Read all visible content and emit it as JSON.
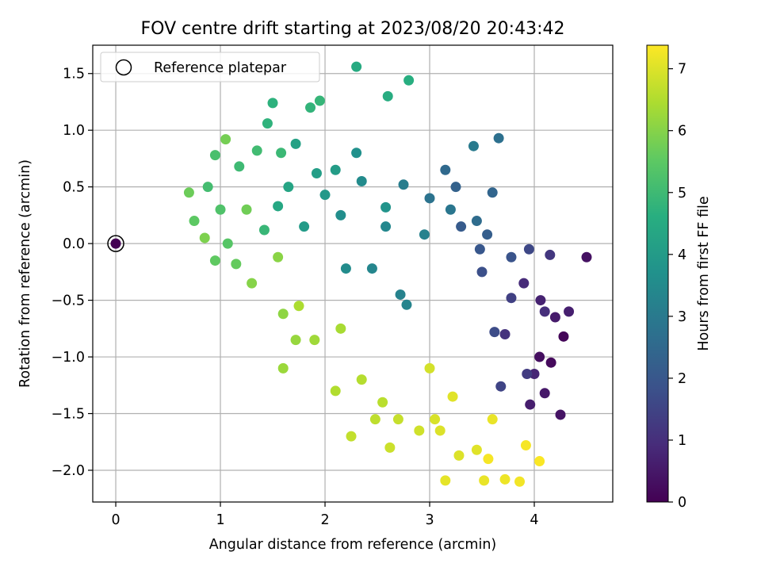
{
  "chart_data": {
    "type": "scatter",
    "title": "FOV centre drift starting at 2023/08/20 20:43:42",
    "xlabel": "Angular distance from reference (arcmin)",
    "ylabel": "Rotation from reference (arcmin)",
    "xlim": [
      -0.22,
      4.75
    ],
    "ylim": [
      -2.28,
      1.75
    ],
    "x_ticks": [
      0,
      1,
      2,
      3,
      4
    ],
    "y_ticks": [
      -2.0,
      -1.5,
      -1.0,
      -0.5,
      0.0,
      0.5,
      1.0,
      1.5
    ],
    "x_tick_labels": [
      "0",
      "1",
      "2",
      "3",
      "4"
    ],
    "y_tick_labels": [
      "−2.0",
      "−1.5",
      "−1.0",
      "−0.5",
      "0.0",
      "0.5",
      "1.0",
      "1.5"
    ],
    "grid": true,
    "legend": {
      "position": "upper-left",
      "entries": [
        "Reference platepar"
      ]
    },
    "reference_point": {
      "x": 0,
      "y": 0
    },
    "colorbar": {
      "label": "Hours from first FF file",
      "colormap": "viridis",
      "range": [
        0,
        7.38
      ],
      "ticks": [
        0,
        1,
        2,
        3,
        4,
        5,
        6,
        7
      ],
      "tick_labels": [
        "0",
        "1",
        "2",
        "3",
        "4",
        "5",
        "6",
        "7"
      ]
    },
    "series": [
      {
        "color_value": "hours",
        "points": [
          [
            4.28,
            -0.82,
            0.1
          ],
          [
            4.16,
            -1.05,
            0.2
          ],
          [
            4.05,
            -1.0,
            0.3
          ],
          [
            4.5,
            -0.12,
            0.35
          ],
          [
            4.25,
            -1.51,
            0.4
          ],
          [
            4.1,
            -1.32,
            0.5
          ],
          [
            4.2,
            -0.65,
            0.55
          ],
          [
            3.96,
            -1.42,
            0.6
          ],
          [
            4.33,
            -0.6,
            0.65
          ],
          [
            4.06,
            -0.5,
            0.7
          ],
          [
            4.0,
            -1.15,
            0.8
          ],
          [
            3.9,
            -0.35,
            0.9
          ],
          [
            4.1,
            -0.6,
            1.0
          ],
          [
            3.72,
            -0.8,
            1.1
          ],
          [
            4.15,
            -0.1,
            1.2
          ],
          [
            3.93,
            -1.15,
            1.3
          ],
          [
            3.78,
            -0.48,
            1.4
          ],
          [
            3.68,
            -1.26,
            1.5
          ],
          [
            3.95,
            -0.05,
            1.6
          ],
          [
            3.62,
            -0.78,
            1.7
          ],
          [
            3.5,
            -0.25,
            1.8
          ],
          [
            3.78,
            -0.12,
            1.9
          ],
          [
            3.48,
            -0.05,
            2.0
          ],
          [
            3.3,
            0.15,
            2.1
          ],
          [
            3.55,
            0.08,
            2.2
          ],
          [
            3.25,
            0.5,
            2.3
          ],
          [
            3.6,
            0.45,
            2.4
          ],
          [
            3.15,
            0.65,
            2.5
          ],
          [
            3.45,
            0.2,
            2.6
          ],
          [
            3.66,
            0.93,
            2.7
          ],
          [
            3.0,
            0.4,
            2.8
          ],
          [
            3.2,
            0.3,
            2.9
          ],
          [
            3.42,
            0.86,
            3.0
          ],
          [
            2.75,
            0.52,
            3.1
          ],
          [
            2.95,
            0.08,
            3.2
          ],
          [
            2.72,
            -0.45,
            3.25
          ],
          [
            2.78,
            -0.54,
            3.3
          ],
          [
            2.45,
            -0.22,
            3.35
          ],
          [
            2.58,
            0.15,
            3.4
          ],
          [
            2.35,
            0.55,
            3.5
          ],
          [
            2.2,
            -0.22,
            3.55
          ],
          [
            2.15,
            0.25,
            3.6
          ],
          [
            2.3,
            0.8,
            3.7
          ],
          [
            2.58,
            0.32,
            3.8
          ],
          [
            2.0,
            0.43,
            3.9
          ],
          [
            1.8,
            0.15,
            4.0
          ],
          [
            2.1,
            0.65,
            4.05
          ],
          [
            1.92,
            0.62,
            4.1
          ],
          [
            1.72,
            0.88,
            4.2
          ],
          [
            1.65,
            0.5,
            4.3
          ],
          [
            1.55,
            0.33,
            4.4
          ],
          [
            2.3,
            1.56,
            4.5
          ],
          [
            2.6,
            1.3,
            4.55
          ],
          [
            2.8,
            1.44,
            4.6
          ],
          [
            1.5,
            1.24,
            4.7
          ],
          [
            1.45,
            1.06,
            4.75
          ],
          [
            1.86,
            1.2,
            4.8
          ],
          [
            1.95,
            1.26,
            4.85
          ],
          [
            1.42,
            0.12,
            4.9
          ],
          [
            1.58,
            0.8,
            4.95
          ],
          [
            1.18,
            0.68,
            5.0
          ],
          [
            1.35,
            0.82,
            5.05
          ],
          [
            0.88,
            0.5,
            5.1
          ],
          [
            0.95,
            0.78,
            5.2
          ],
          [
            1.0,
            0.3,
            5.3
          ],
          [
            1.07,
            0.0,
            5.4
          ],
          [
            0.75,
            0.2,
            5.5
          ],
          [
            0.95,
            -0.15,
            5.55
          ],
          [
            1.15,
            -0.18,
            5.6
          ],
          [
            0.7,
            0.45,
            5.7
          ],
          [
            1.25,
            0.3,
            5.75
          ],
          [
            1.05,
            0.92,
            5.8
          ],
          [
            0.85,
            0.05,
            5.9
          ],
          [
            1.3,
            -0.35,
            6.0
          ],
          [
            1.55,
            -0.12,
            6.05
          ],
          [
            1.6,
            -0.62,
            6.1
          ],
          [
            1.72,
            -0.85,
            6.2
          ],
          [
            1.6,
            -1.1,
            6.25
          ],
          [
            1.9,
            -0.85,
            6.3
          ],
          [
            2.15,
            -0.75,
            6.4
          ],
          [
            1.75,
            -0.55,
            6.45
          ],
          [
            2.1,
            -1.3,
            6.5
          ],
          [
            2.35,
            -1.2,
            6.55
          ],
          [
            2.55,
            -1.4,
            6.6
          ],
          [
            2.48,
            -1.55,
            6.65
          ],
          [
            2.25,
            -1.7,
            6.7
          ],
          [
            2.7,
            -1.55,
            6.75
          ],
          [
            2.62,
            -1.8,
            6.8
          ],
          [
            2.9,
            -1.65,
            6.85
          ],
          [
            3.0,
            -1.1,
            6.9
          ],
          [
            3.05,
            -1.55,
            6.95
          ],
          [
            3.1,
            -1.65,
            7.0
          ],
          [
            3.22,
            -1.35,
            7.05
          ],
          [
            3.15,
            -2.09,
            7.1
          ],
          [
            3.52,
            -2.09,
            7.15
          ],
          [
            3.72,
            -2.08,
            7.2
          ],
          [
            3.86,
            -2.1,
            7.25
          ],
          [
            3.92,
            -1.78,
            7.3
          ],
          [
            4.05,
            -1.92,
            7.35
          ],
          [
            3.56,
            -1.9,
            7.3
          ],
          [
            3.6,
            -1.55,
            7.15
          ],
          [
            3.45,
            -1.82,
            7.05
          ],
          [
            3.28,
            -1.87,
            7.0
          ]
        ]
      }
    ]
  }
}
